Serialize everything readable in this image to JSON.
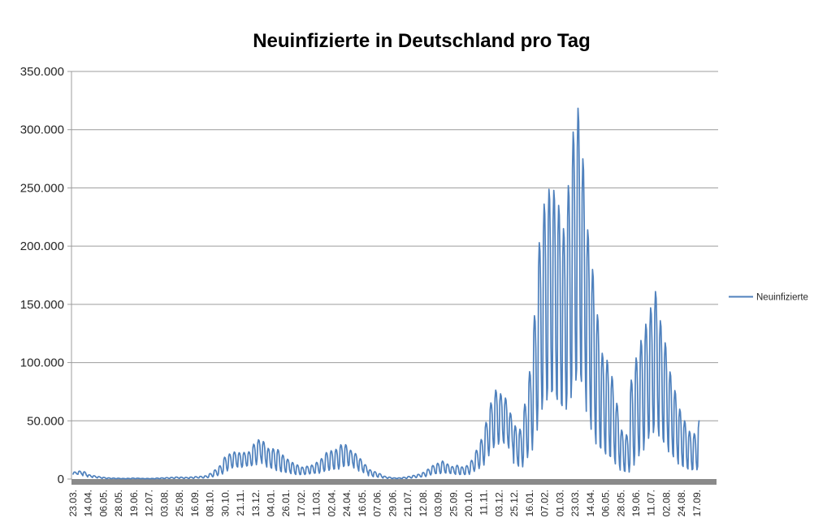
{
  "title": "Neuinfizierte in Deutschland pro Tag",
  "legend": {
    "label": "Neuinfizierte",
    "position": "right"
  },
  "colors": {
    "series": "#4F81BD",
    "gridline": "#9C9C9C",
    "axis_line": "#9C9C9C",
    "axis_bar": "#8A8A8A",
    "text": "#262626",
    "title": "#000000",
    "background": "#FFFFFF"
  },
  "chart_data": {
    "type": "line",
    "title": "Neuinfizierte in Deutschland pro Tag",
    "series_name": "Neuinfizierte",
    "xlabel": "",
    "ylabel": "",
    "ylim": [
      0,
      350000
    ],
    "grid": "horizontal",
    "legend_position": "right",
    "y_tick_labels": [
      "0",
      "50.000",
      "100.000",
      "150.000",
      "200.000",
      "250.000",
      "300.000",
      "350.000"
    ],
    "y_tick_values": [
      0,
      50000,
      100000,
      150000,
      200000,
      250000,
      300000,
      350000
    ],
    "x_tick_labels": [
      "23.03.",
      "14.04.",
      "06.05.",
      "28.05.",
      "19.06.",
      "12.07.",
      "03.08.",
      "25.08.",
      "16.09.",
      "08.10.",
      "30.10.",
      "21.11.",
      "13.12.",
      "04.01.",
      "26.01.",
      "17.02.",
      "11.03.",
      "02.04.",
      "24.04.",
      "16.05.",
      "07.06.",
      "29.06.",
      "21.07.",
      "12.08.",
      "03.09.",
      "25.09.",
      "20.10.",
      "11.11.",
      "03.12.",
      "25.12.",
      "16.01.",
      "07.02.",
      "01.03.",
      "23.03.",
      "14.04.",
      "06.05.",
      "28.05.",
      "19.06.",
      "11.07.",
      "02.08.",
      "24.08.",
      "17.09."
    ],
    "x_label_rotation": -90,
    "x_tick_interval_points": 22,
    "date_range": {
      "start": "23.03.2020",
      "end": "17.09.2022"
    },
    "observed_extremes": {
      "dec_2020_wave_peak": 33700,
      "apr_2021_wave_peak": 29500,
      "nov_2021_wave_peak": 76400,
      "feb_2022_peak": 248800,
      "mar_2022_all_time_peak": 318400,
      "jul_2022_summer_peak": 161000,
      "last_value": 50000
    },
    "weekly_envelope": {
      "description": "Daily reported new infections oscillate weekly (weekend reporting dips). Each week is given as [midweek_peak, weekend_trough]; daily values = trough + factor*(peak-trough) using weekday_shape (Mon..Sun).",
      "weekday_shape": [
        0.02,
        0.85,
        1.0,
        0.95,
        0.72,
        0.22,
        0.0
      ],
      "final_week_end_day": 2,
      "weeks": [
        [
          6000,
          4200
        ],
        [
          6800,
          4000
        ],
        [
          6200,
          2800
        ],
        [
          3600,
          1800
        ],
        [
          2800,
          1300
        ],
        [
          2000,
          900
        ],
        [
          1400,
          500
        ],
        [
          1000,
          350
        ],
        [
          800,
          300
        ],
        [
          700,
          300
        ],
        [
          500,
          200
        ],
        [
          600,
          200
        ],
        [
          800,
          300
        ],
        [
          700,
          400
        ],
        [
          500,
          200
        ],
        [
          500,
          200
        ],
        [
          500,
          200
        ],
        [
          800,
          300
        ],
        [
          1000,
          400
        ],
        [
          1200,
          500
        ],
        [
          1400,
          600
        ],
        [
          1700,
          700
        ],
        [
          1600,
          600
        ],
        [
          1400,
          600
        ],
        [
          1700,
          600
        ],
        [
          2000,
          900
        ],
        [
          2300,
          900
        ],
        [
          2700,
          1100
        ],
        [
          4700,
          1900
        ],
        [
          7800,
          3000
        ],
        [
          11300,
          4300
        ],
        [
          18700,
          7000
        ],
        [
          21500,
          9500
        ],
        [
          23200,
          10800
        ],
        [
          22600,
          10100
        ],
        [
          22800,
          11200
        ],
        [
          23400,
          11500
        ],
        [
          29900,
          12300
        ],
        [
          33700,
          16600
        ],
        [
          32200,
          13000
        ],
        [
          26300,
          10000
        ],
        [
          26000,
          9000
        ],
        [
          25200,
          7000
        ],
        [
          20600,
          6000
        ],
        [
          17000,
          5600
        ],
        [
          14200,
          4500
        ],
        [
          12100,
          3800
        ],
        [
          10200,
          3900
        ],
        [
          11000,
          4400
        ],
        [
          11900,
          5000
        ],
        [
          14300,
          5000
        ],
        [
          17500,
          6600
        ],
        [
          22700,
          7500
        ],
        [
          24300,
          8500
        ],
        [
          25500,
          8500
        ],
        [
          29400,
          10800
        ],
        [
          29500,
          11400
        ],
        [
          24700,
          11900
        ],
        [
          21900,
          9200
        ],
        [
          17400,
          6700
        ],
        [
          12300,
          5400
        ],
        [
          7900,
          2700
        ],
        [
          6300,
          1900
        ],
        [
          4600,
          1500
        ],
        [
          2400,
          800
        ],
        [
          1600,
          500
        ],
        [
          1000,
          400
        ],
        [
          1000,
          400
        ],
        [
          1500,
          500
        ],
        [
          2200,
          900
        ],
        [
          3100,
          1200
        ],
        [
          4000,
          1800
        ],
        [
          5600,
          2100
        ],
        [
          8400,
          3500
        ],
        [
          11600,
          4700
        ],
        [
          13500,
          4700
        ],
        [
          15400,
          5500
        ],
        [
          12900,
          5000
        ],
        [
          10700,
          4700
        ],
        [
          11800,
          3900
        ],
        [
          10400,
          3900
        ],
        [
          11500,
          4000
        ],
        [
          16000,
          6600
        ],
        [
          24700,
          9000
        ],
        [
          33900,
          12000
        ],
        [
          48600,
          20000
        ],
        [
          65400,
          27000
        ],
        [
          76400,
          30000
        ],
        [
          73200,
          33000
        ],
        [
          69600,
          30000
        ],
        [
          56700,
          26000
        ],
        [
          45700,
          13000
        ],
        [
          42800,
          10500
        ],
        [
          64300,
          18500
        ],
        [
          92200,
          25000
        ],
        [
          140200,
          42000
        ],
        [
          203000,
          60000
        ],
        [
          236100,
          68000
        ],
        [
          248800,
          75000
        ],
        [
          247900,
          73000
        ],
        [
          235000,
          65000
        ],
        [
          215000,
          60000
        ],
        [
          252000,
          70000
        ],
        [
          298000,
          85000
        ],
        [
          318400,
          90000
        ],
        [
          275000,
          80000
        ],
        [
          214000,
          55000
        ],
        [
          180000,
          40000
        ],
        [
          141000,
          28000
        ],
        [
          108000,
          25000
        ],
        [
          102000,
          20000
        ],
        [
          88000,
          18000
        ],
        [
          65000,
          12000
        ],
        [
          42000,
          7000
        ],
        [
          38000,
          6000
        ],
        [
          85000,
          12000
        ],
        [
          104000,
          20000
        ],
        [
          119000,
          25000
        ],
        [
          133000,
          35000
        ],
        [
          147000,
          40000
        ],
        [
          161000,
          45000
        ],
        [
          136000,
          35000
        ],
        [
          117000,
          30000
        ],
        [
          92000,
          22000
        ],
        [
          76000,
          18000
        ],
        [
          60000,
          12000
        ],
        [
          50000,
          10000
        ],
        [
          41000,
          8000
        ],
        [
          39000,
          8000
        ],
        [
          50000,
          10000
        ]
      ]
    }
  }
}
